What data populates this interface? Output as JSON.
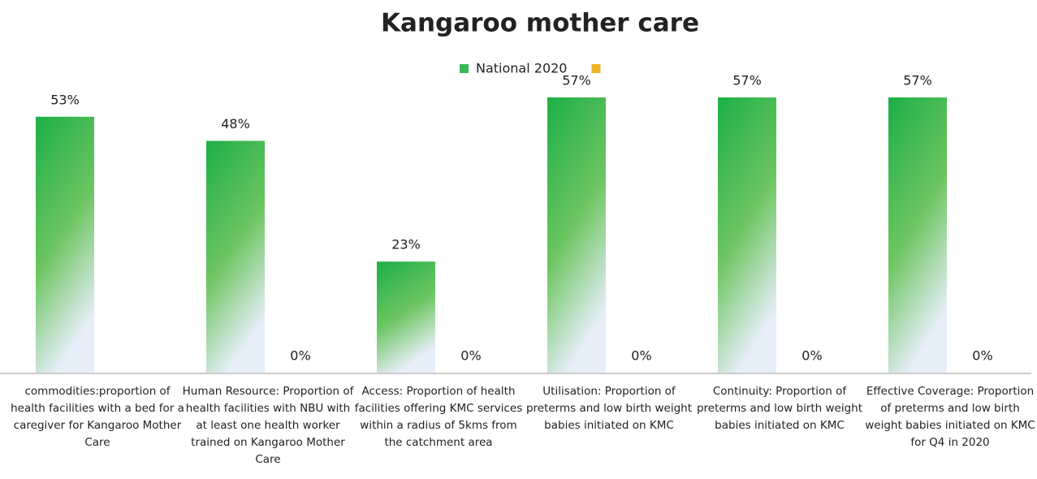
{
  "chart_data": {
    "type": "bar",
    "title": "Kangaroo mother care",
    "categories": [
      "commodities:proportion of health facilities with a bed for a caregiver for Kangaroo Mother Care",
      "Human Resource: Proportion of health facilities with NBU with at least one health worker trained on Kangaroo Mother Care",
      "Access: Proportion of health facilities offering KMC services within a radius of 5kms from the catchment area",
      "Utilisation: Proportion of preterms and low birth weight babies initiated on KMC",
      "Continuity: Proportion of preterms and low birth weight babies initiated on KMC",
      "Effective Coverage: Proportion of preterms and low birth weight babies initiated on KMC for Q4 in 2020"
    ],
    "series": [
      {
        "name": "National 2020",
        "color": "#22b24c",
        "values": [
          53,
          48,
          23,
          57,
          57,
          57
        ],
        "value_labels": [
          "53%",
          "48%",
          "23%",
          "57%",
          "57%",
          "57%"
        ]
      },
      {
        "color": "#f0b429",
        "values": [
          null,
          0,
          0,
          0,
          0,
          0
        ],
        "value_labels": [
          null,
          "0%",
          "0%",
          "0%",
          "0%",
          "0%"
        ]
      }
    ],
    "legend": "top"
  }
}
